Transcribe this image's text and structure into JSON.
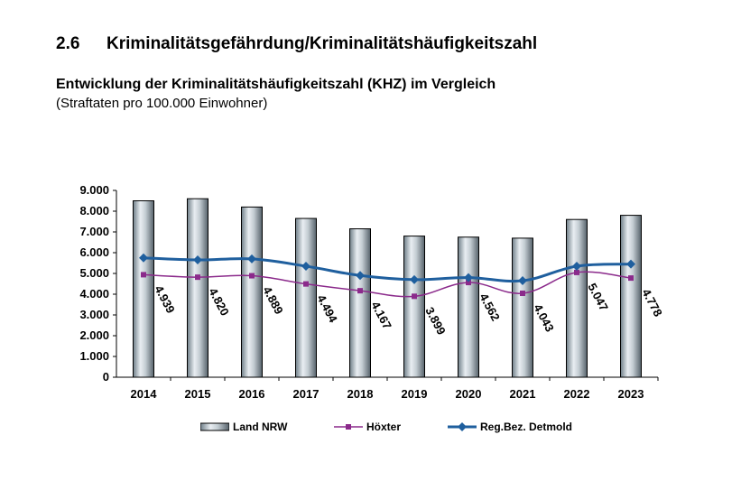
{
  "header": {
    "section_number": "2.6",
    "section_title": "Kriminalitätsgefährdung/Kriminalitätshäufigkeitszahl"
  },
  "chart_data": {
    "type": "bar",
    "title": "Entwicklung der Kriminalitätshäufigkeitszahl (KHZ) im Vergleich",
    "subtitle": "(Straftaten pro 100.000 Einwohner)",
    "categories": [
      "2014",
      "2015",
      "2016",
      "2017",
      "2018",
      "2019",
      "2020",
      "2021",
      "2022",
      "2023"
    ],
    "ylim": [
      0,
      9000
    ],
    "yticks": [
      {
        "value": 0,
        "label": "0"
      },
      {
        "value": 1000,
        "label": "1.000"
      },
      {
        "value": 2000,
        "label": "2.000"
      },
      {
        "value": 3000,
        "label": "3.000"
      },
      {
        "value": 4000,
        "label": "4.000"
      },
      {
        "value": 5000,
        "label": "5.000"
      },
      {
        "value": 6000,
        "label": "6.000"
      },
      {
        "value": 7000,
        "label": "7.000"
      },
      {
        "value": 8000,
        "label": "8.000"
      },
      {
        "value": 9000,
        "label": "9.000"
      }
    ],
    "grid": false,
    "legend_position": "bottom",
    "series": [
      {
        "name": "Land NRW",
        "kind": "bar",
        "color": "#9aa7b0",
        "values": [
          8500,
          8600,
          8200,
          7650,
          7150,
          6800,
          6750,
          6700,
          7600,
          7800
        ]
      },
      {
        "name": "Höxter",
        "kind": "line",
        "color": "#8b2a8b",
        "marker": "square",
        "values": [
          4939,
          4820,
          4889,
          4494,
          4167,
          3899,
          4562,
          4043,
          5047,
          4778
        ],
        "labels": [
          "4.939",
          "4.820",
          "4.889",
          "4.494",
          "4.167",
          "3.899",
          "4.562",
          "4.043",
          "5.047",
          "4.778"
        ]
      },
      {
        "name": "Reg.Bez. Detmold",
        "kind": "line",
        "color": "#1f5f9e",
        "marker": "diamond",
        "values": [
          5750,
          5650,
          5700,
          5350,
          4900,
          4700,
          4800,
          4650,
          5350,
          5450
        ]
      }
    ]
  }
}
